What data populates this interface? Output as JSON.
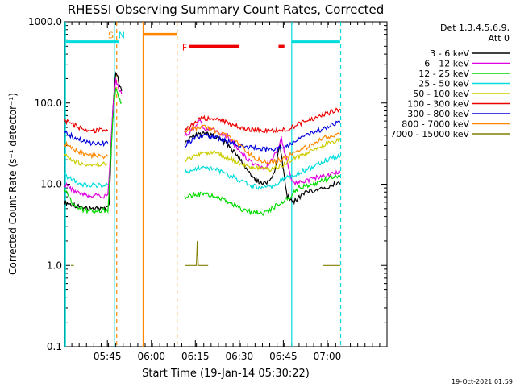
{
  "chart_data": {
    "type": "line",
    "title": "RHESSI Observing Summary Count Rates, Corrected",
    "xlabel": "Start Time (19-Jan-14 05:30:22)",
    "ylabel": "Corrected Count Rate (s⁻¹ detector⁻¹)",
    "y_scale": "log",
    "ylim": [
      0.1,
      1000
    ],
    "xlim_minutes": [
      0,
      110
    ],
    "x_ticks": [
      {
        "t": 14.63,
        "label": "05:45"
      },
      {
        "t": 29.63,
        "label": "06:00"
      },
      {
        "t": 44.63,
        "label": "06:15"
      },
      {
        "t": 59.63,
        "label": "06:30"
      },
      {
        "t": 74.63,
        "label": "06:45"
      },
      {
        "t": 89.63,
        "label": "07:00"
      }
    ],
    "y_ticks": [
      {
        "v": 0.1,
        "label": "0.1"
      },
      {
        "v": 1,
        "label": "1.0"
      },
      {
        "v": 10,
        "label": "10.0"
      },
      {
        "v": 100,
        "label": "100.0"
      },
      {
        "v": 1000,
        "label": "1000.0"
      }
    ],
    "legend_header": "Det 1,3,4,5,6,9,",
    "legend_subheader": "Att 0",
    "legend_position": "right",
    "series": [
      {
        "name": "3 - 6 keV",
        "color": "#000000",
        "segments": [
          {
            "x": [
              0,
              3,
              6,
              8,
              12,
              14.5,
              15.2,
              16.5,
              17.5,
              18.5,
              19.5
            ],
            "y": [
              6,
              5.5,
              5.2,
              5,
              5,
              5.2,
              5.5,
              80,
              250,
              180,
              140
            ]
          },
          {
            "x": [
              41,
              44,
              48,
              52,
              56,
              60,
              64,
              68,
              71,
              73.5,
              76,
              78,
              82,
              86,
              90,
              92,
              94
            ],
            "y": [
              32,
              40,
              42,
              38,
              30,
              20,
              12,
              10,
              12,
              30,
              7,
              6,
              8,
              8.5,
              9,
              10,
              10
            ]
          }
        ]
      },
      {
        "name": "6 - 12 keV",
        "color": "#e000e0",
        "segments": [
          {
            "x": [
              0,
              3,
              6,
              9,
              12,
              14.8,
              16.5,
              17.5,
              18.5,
              19.5
            ],
            "y": [
              10,
              8.5,
              7.5,
              7.2,
              7.2,
              7.2,
              80,
              200,
              150,
              130
            ]
          },
          {
            "x": [
              41,
              44,
              46,
              48,
              52,
              56,
              60,
              64,
              68,
              71,
              74,
              78,
              82,
              86,
              90,
              94
            ],
            "y": [
              40,
              48,
              60,
              48,
              45,
              38,
              25,
              18,
              16,
              20,
              35,
              10,
              11,
              12,
              13,
              14
            ]
          }
        ]
      },
      {
        "name": "12 - 25 keV",
        "color": "#00dc00",
        "segments": [
          {
            "x": [
              0,
              2,
              4,
              7,
              10,
              13,
              14.8,
              16.5,
              17.5,
              18.5,
              19.5
            ],
            "y": [
              8.5,
              6.5,
              5.2,
              4.8,
              4.6,
              4.8,
              4.8,
              60,
              150,
              120,
              100
            ]
          },
          {
            "x": [
              41,
              44,
              48,
              52,
              56,
              60,
              64,
              68,
              71,
              73.5,
              76,
              80,
              84,
              88,
              91,
              94
            ],
            "y": [
              7,
              7.5,
              7.5,
              7,
              6,
              5,
              4.5,
              4.3,
              5,
              6,
              6.5,
              9,
              10,
              11,
              12,
              12.5
            ]
          }
        ]
      },
      {
        "name": "25 - 50 keV",
        "color": "#00dcdc",
        "segments": [
          {
            "x": [
              0,
              3,
              6,
              9,
              12,
              14.8
            ],
            "y": [
              13,
              11,
              10,
              9.7,
              9.7,
              9.7
            ]
          },
          {
            "x": [
              41,
              44,
              48,
              52,
              56,
              60,
              64,
              68,
              71,
              74,
              76,
              80,
              84,
              88,
              91,
              94
            ],
            "y": [
              14,
              15.5,
              16,
              15,
              13,
              11,
              9.5,
              9,
              9.5,
              11,
              12,
              14,
              16,
              19,
              21,
              22
            ]
          }
        ]
      },
      {
        "name": "50 - 100 keV",
        "color": "#cccc00",
        "segments": [
          {
            "x": [
              0,
              3,
              6,
              9,
              12,
              14.8
            ],
            "y": [
              23,
              19.5,
              18,
              17.5,
              17.5,
              17.5
            ]
          },
          {
            "x": [
              41,
              44,
              48,
              52,
              56,
              60,
              64,
              68,
              71,
              74,
              76,
              80,
              84,
              88,
              91,
              94
            ],
            "y": [
              19,
              22,
              25,
              24,
              21,
              18,
              16,
              15,
              15.5,
              17,
              19,
              22,
              26,
              30,
              33,
              35
            ]
          }
        ]
      },
      {
        "name": "100 - 300 keV",
        "color": "#ee0000",
        "segments": [
          {
            "x": [
              0,
              3,
              6,
              9,
              12,
              14.8
            ],
            "y": [
              62,
              53,
              48,
              46,
              46,
              46
            ]
          },
          {
            "x": [
              41,
              44,
              46,
              48,
              52,
              56,
              60,
              64,
              68,
              71,
              74,
              76,
              80,
              84,
              88,
              91,
              94
            ],
            "y": [
              45,
              55,
              63,
              65,
              62,
              56,
              50,
              47,
              46,
              46,
              47,
              48,
              55,
              62,
              70,
              78,
              85
            ]
          }
        ]
      },
      {
        "name": "300 - 800 keV",
        "color": "#0000dd",
        "segments": [
          {
            "x": [
              0,
              3,
              6,
              9,
              12,
              14.8
            ],
            "y": [
              44,
              38,
              34,
              32,
              32,
              32
            ]
          },
          {
            "x": [
              41,
              44,
              48,
              52,
              56,
              60,
              64,
              68,
              71,
              74,
              76,
              80,
              84,
              88,
              91,
              94
            ],
            "y": [
              30,
              36,
              40,
              38,
              33,
              30,
              28,
              27,
              27,
              28,
              30,
              35,
              42,
              48,
              54,
              58
            ]
          }
        ]
      },
      {
        "name": "800 - 7000 keV",
        "color": "#ff8800",
        "segments": [
          {
            "x": [
              0,
              3,
              6,
              9,
              12,
              14.8
            ],
            "y": [
              32,
              27,
              24,
              22.5,
              22,
              22
            ]
          },
          {
            "x": [
              41,
              44,
              48,
              52,
              56,
              60,
              64,
              68,
              71,
              74,
              76,
              80,
              84,
              88,
              91,
              94
            ],
            "y": [
              45,
              48,
              50,
              45,
              38,
              30,
              22,
              19,
              19,
              20,
              22,
              26,
              30,
              36,
              40,
              42
            ]
          }
        ]
      },
      {
        "name": "7000 - 15000 keV",
        "color": "#808000",
        "segments": [
          {
            "x": [
              2.2,
              3.2
            ],
            "y": [
              1.0,
              1.0
            ]
          },
          {
            "x": [
              41,
              44,
              45,
              45.3,
              45.6,
              46,
              49
            ],
            "y": [
              1.0,
              1.0,
              1.0,
              2.0,
              1.0,
              1.0,
              1.0
            ]
          },
          {
            "x": [
              88,
              94
            ],
            "y": [
              1.0,
              1.0
            ]
          }
        ]
      }
    ],
    "annotations": {
      "orange_bar": {
        "x": [
          27,
          38.5
        ],
        "y": 700,
        "color": "#ff8800"
      },
      "cyan_bars": [
        {
          "x": [
            0.5,
            18.5
          ],
          "y": 570
        },
        {
          "x": [
            77.5,
            94
          ],
          "y": 570
        }
      ],
      "flare_bars": [
        {
          "x": [
            42.5,
            59.7
          ],
          "y": 500
        },
        {
          "x": [
            73,
            75
          ],
          "y": 500
        }
      ],
      "orange_lines": [
        {
          "t": 17.8,
          "style": "dashed"
        },
        {
          "t": 26.8,
          "style": "solid"
        },
        {
          "t": 38.4,
          "style": "dashed"
        }
      ],
      "cyan_lines": [
        {
          "t": 17,
          "style": "solid"
        },
        {
          "t": 77.5,
          "style": "solid"
        },
        {
          "t": 94.2,
          "style": "dashed"
        }
      ],
      "labels": [
        {
          "text": "S",
          "t": 15.8,
          "color": "#ff8800"
        },
        {
          "text": "N",
          "t": 19.5,
          "color": "#00dcdc"
        },
        {
          "text": "F",
          "t": 41,
          "color": "#ff0000"
        }
      ]
    }
  },
  "footer_timestamp": "19-Oct-2021 01:59"
}
